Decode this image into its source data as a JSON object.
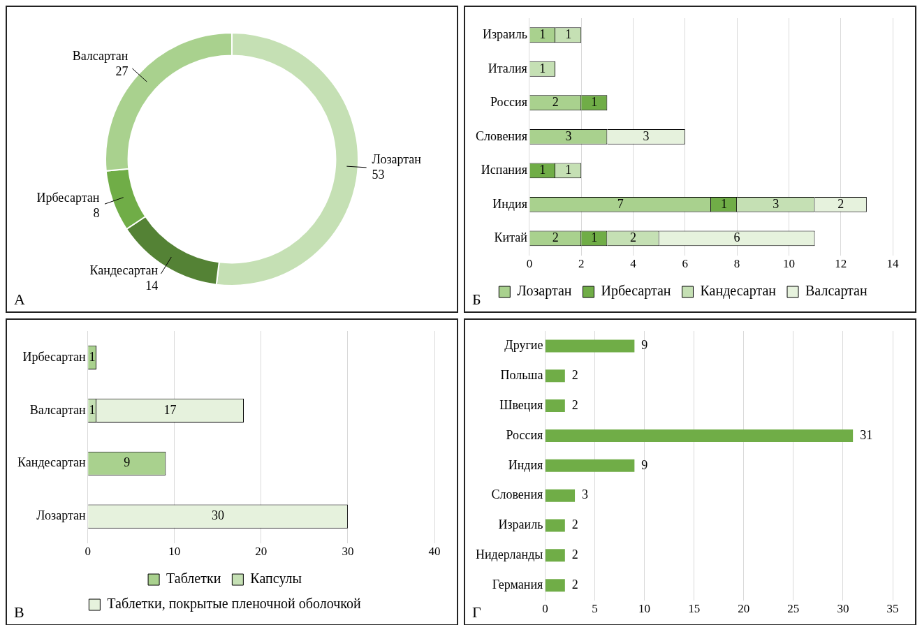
{
  "chart_data": [
    {
      "type": "donut",
      "categories": [
        "Лозартан",
        "Кандесартан",
        "Ирбесартан",
        "Валсартан"
      ],
      "values": [
        53,
        14,
        8,
        27
      ],
      "colors": [
        "#c5e0b4",
        "#548235",
        "#70ad47",
        "#a9d18e"
      ],
      "data_labels": true,
      "annotations": [
        "А"
      ]
    },
    {
      "type": "bar",
      "orientation": "horizontal",
      "stacked": true,
      "categories": [
        "Израиль",
        "Италия",
        "Россия",
        "Словения",
        "Испания",
        "Индия",
        "Китай"
      ],
      "series": [
        {
          "name": "Лозартан",
          "color": "#a9d18e",
          "values": [
            1,
            null,
            2,
            3,
            null,
            7,
            2
          ]
        },
        {
          "name": "Ирбесартан",
          "color": "#70ad47",
          "values": [
            null,
            null,
            1,
            null,
            1,
            1,
            1
          ]
        },
        {
          "name": "Кандесартан",
          "color": "#c5e0b4",
          "values": [
            1,
            1,
            null,
            null,
            1,
            3,
            2
          ]
        },
        {
          "name": "Валсартан",
          "color": "#e6f2dd",
          "values": [
            null,
            null,
            null,
            3,
            null,
            2,
            6
          ]
        }
      ],
      "xlim": [
        0,
        14
      ],
      "xticks": [
        0,
        2,
        4,
        6,
        8,
        10,
        12,
        14
      ],
      "grid": "x",
      "legend": "bottom",
      "data_labels": true,
      "annotations": [
        "Б"
      ]
    },
    {
      "type": "bar",
      "orientation": "horizontal",
      "stacked": true,
      "categories": [
        "Ирбесартан",
        "Валсартан",
        "Кандесартан",
        "Лозартан"
      ],
      "series": [
        {
          "name": "Таблетки",
          "color": "#a9d18e",
          "values": [
            1,
            null,
            9,
            null
          ]
        },
        {
          "name": "Капсулы",
          "color": "#c5e0b4",
          "values": [
            null,
            1,
            null,
            null
          ]
        },
        {
          "name": "Таблетки, покрытые пленочной оболочкой",
          "color": "#e6f2dd",
          "values": [
            null,
            17,
            null,
            30
          ]
        }
      ],
      "xlim": [
        0,
        40
      ],
      "xticks": [
        0,
        10,
        20,
        30,
        40
      ],
      "grid": "x",
      "legend": "bottom",
      "data_labels": true,
      "annotations": [
        "В"
      ]
    },
    {
      "type": "bar",
      "orientation": "horizontal",
      "categories": [
        "Другие",
        "Польша",
        "Швеция",
        "Россия",
        "Индия",
        "Словения",
        "Израиль",
        "Нидерланды",
        "Германия"
      ],
      "series": [
        {
          "color": "#70ad47",
          "values": [
            9,
            2,
            2,
            31,
            9,
            3,
            2,
            2,
            2
          ]
        }
      ],
      "xlim": [
        0,
        35
      ],
      "xticks": [
        0,
        5,
        10,
        15,
        20,
        25,
        30,
        35
      ],
      "grid": "x",
      "data_labels": true,
      "annotations": [
        "Г"
      ]
    }
  ]
}
